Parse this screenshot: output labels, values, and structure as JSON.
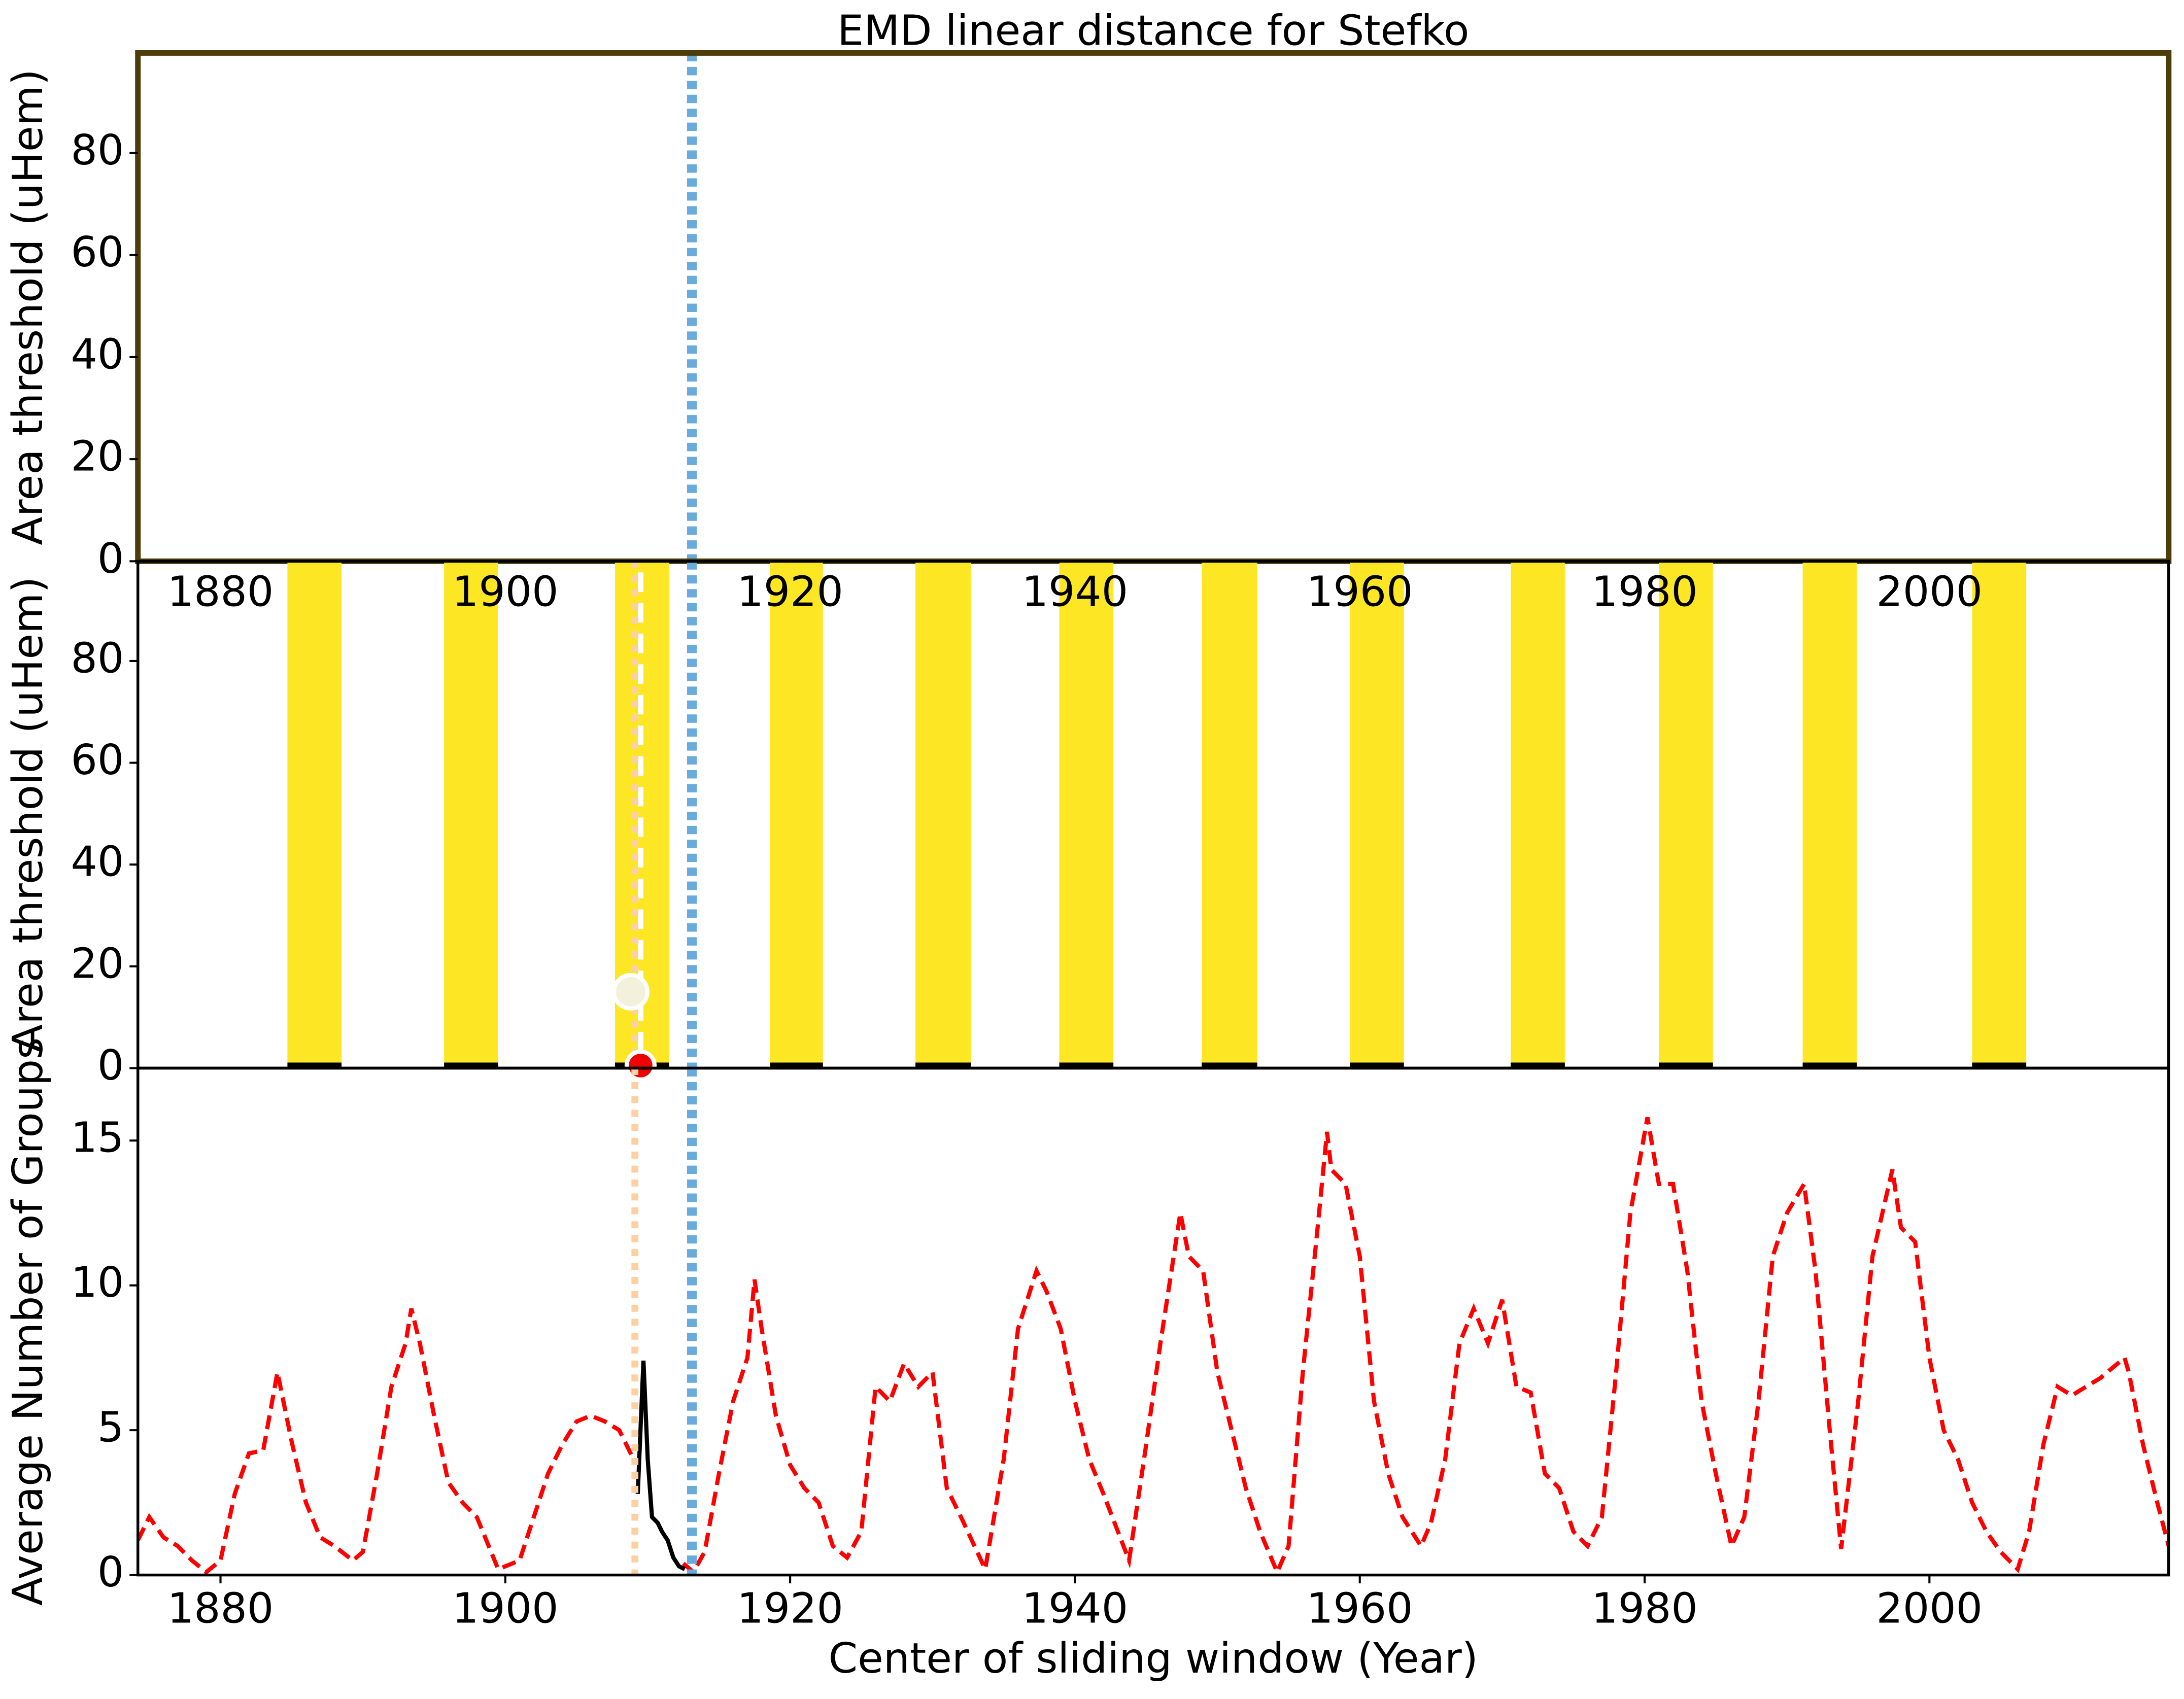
{
  "chart_data": [
    {
      "type": "empty",
      "title": "EMD linear distance for Stefko",
      "ylabel": "Area threshold (uHem)",
      "xlim": [
        1874.2,
        2016.8
      ],
      "ylim": [
        0,
        99.6
      ],
      "yticks": [
        0,
        20,
        40,
        60,
        80
      ],
      "frame_color": "#4d3d0a",
      "vlines": [
        {
          "x": 1913.1,
          "color": "#6aabde"
        }
      ]
    },
    {
      "type": "bands",
      "ylabel": "Area threshold (uHem)",
      "xlim": [
        1874.2,
        2016.8
      ],
      "ylim": [
        0,
        99.6
      ],
      "yticks": [
        0,
        20,
        40,
        60,
        80
      ],
      "xticks": [
        1880,
        1900,
        1920,
        1940,
        1960,
        1980,
        2000
      ],
      "band_color": "#fde725",
      "bands": [
        {
          "start": 1884.7,
          "end": 1888.5
        },
        {
          "start": 1895.7,
          "end": 1899.5
        },
        {
          "start": 1907.7,
          "end": 1911.5
        },
        {
          "start": 1918.6,
          "end": 1922.3
        },
        {
          "start": 1928.8,
          "end": 1932.7
        },
        {
          "start": 1938.9,
          "end": 1942.7
        },
        {
          "start": 1948.9,
          "end": 1952.8
        },
        {
          "start": 1959.3,
          "end": 1963.1
        },
        {
          "start": 1970.6,
          "end": 1974.4
        },
        {
          "start": 1981.0,
          "end": 1984.8
        },
        {
          "start": 1991.1,
          "end": 1994.9
        },
        {
          "start": 2003.0,
          "end": 2006.8
        }
      ],
      "points": [
        {
          "x": 1908.8,
          "y": 15,
          "color": "#f3f0dc"
        },
        {
          "x": 1909.5,
          "y": 0.5,
          "color": "#ee0000"
        }
      ],
      "vlines": [
        {
          "x": 1909.5,
          "color": "#ffffff"
        },
        {
          "x": 1909.1,
          "color": "#fdd0a2"
        },
        {
          "x": 1913.1,
          "color": "#6aabde"
        }
      ]
    },
    {
      "type": "line",
      "ylabel": "Average Number of Groups",
      "xlabel": "Center of sliding window (Year)",
      "xlim": [
        1874.2,
        2016.8
      ],
      "ylim": [
        0,
        17.5
      ],
      "yticks": [
        0,
        5,
        10,
        15
      ],
      "xticks": [
        1880,
        1900,
        1920,
        1940,
        1960,
        1980,
        2000
      ],
      "series": [
        {
          "color": "#ff0000",
          "x": [
            1874.2,
            1875,
            1876,
            1877,
            1878,
            1879,
            1880,
            1881,
            1882,
            1883,
            1884,
            1885,
            1886,
            1887,
            1888,
            1889.3,
            1890,
            1891,
            1892,
            1893,
            1893.4,
            1894,
            1895,
            1896,
            1897,
            1898,
            1899.5,
            1901,
            1902,
            1903,
            1904,
            1905,
            1906,
            1907,
            1908,
            1909,
            1910,
            1912.5,
            1913.2,
            1914,
            1915,
            1916,
            1917,
            1917.5,
            1918,
            1919,
            1920,
            1921,
            1922,
            1923,
            1924,
            1925,
            1926,
            1927,
            1928,
            1929,
            1930,
            1931,
            1932,
            1933.7,
            1935,
            1936,
            1937.3,
            1938,
            1939,
            1940,
            1941,
            1942,
            1943.8,
            1945,
            1946,
            1947.4,
            1948,
            1949,
            1950,
            1951,
            1952,
            1953,
            1954.2,
            1955,
            1956,
            1957,
            1957.7,
            1958,
            1959,
            1960,
            1961,
            1962,
            1963,
            1964.3,
            1965,
            1966,
            1967,
            1968,
            1969,
            1970,
            1971,
            1972,
            1973,
            1974,
            1975,
            1976,
            1977,
            1978,
            1979,
            1980.2,
            1981,
            1982,
            1983,
            1984,
            1985,
            1986.1,
            1987,
            1988,
            1989,
            1990,
            1991.2,
            1992,
            1993,
            1993.8,
            1995,
            1996,
            1997.4,
            1998,
            1999,
            2000,
            2001,
            2002,
            2003,
            2004,
            2005,
            2006.2,
            2007,
            2008,
            2009,
            2010,
            2011,
            2012,
            2013.7,
            2014,
            2015,
            2016,
            2016.8
          ],
          "values": [
            1.2,
            2.0,
            1.3,
            1.0,
            0.5,
            0.1,
            0.5,
            2.8,
            4.2,
            4.3,
            7.0,
            4.6,
            2.5,
            1.3,
            1.0,
            0.5,
            0.8,
            3.5,
            6.5,
            8.0,
            9.2,
            8.0,
            5.5,
            3.2,
            2.5,
            2.0,
            0.2,
            0.5,
            2.0,
            3.5,
            4.5,
            5.3,
            5.5,
            5.3,
            5.0,
            4.0,
            null,
            0.4,
            0.1,
            0.8,
            3.5,
            6.0,
            7.5,
            10.2,
            8.5,
            5.5,
            3.8,
            3.0,
            2.5,
            1.0,
            0.6,
            1.5,
            6.5,
            6.0,
            7.3,
            6.5,
            7.0,
            3.0,
            2.0,
            0.2,
            4.0,
            8.5,
            10.5,
            9.8,
            8.5,
            6.0,
            4.0,
            2.8,
            0.5,
            4.5,
            8.0,
            12.5,
            11.0,
            10.5,
            7.0,
            5.0,
            3.0,
            1.5,
            0.1,
            1.0,
            7.0,
            11.8,
            15.3,
            14.0,
            13.5,
            11.0,
            6.0,
            3.5,
            2.0,
            1.0,
            1.8,
            4.0,
            8.0,
            9.2,
            8.0,
            9.5,
            6.5,
            6.3,
            3.5,
            3.0,
            1.5,
            1.0,
            2.0,
            7.0,
            12.5,
            15.8,
            13.5,
            13.5,
            10.5,
            6.0,
            3.5,
            1.0,
            2.0,
            6.0,
            11.0,
            12.5,
            13.5,
            10.5,
            5.0,
            0.9,
            6.0,
            11.0,
            14.0,
            12.0,
            11.5,
            7.5,
            5.0,
            4.0,
            2.5,
            1.5,
            0.8,
            0.2,
            1.5,
            4.5,
            6.5,
            6.2,
            6.5,
            6.8,
            7.5,
            7.0,
            4.5,
            2.5,
            1.0
          ]
        },
        {
          "color": "#000000",
          "x": [
            1909.3,
            1909.7,
            1910,
            1910.3,
            1910.7,
            1911,
            1911.4,
            1911.8,
            1912.2,
            1912.6
          ],
          "values": [
            2.8,
            7.4,
            4.0,
            2.0,
            1.8,
            1.5,
            1.2,
            0.6,
            0.3,
            0.2
          ]
        }
      ],
      "vlines": [
        {
          "x": 1909.1,
          "color": "#fdd0a2"
        },
        {
          "x": 1913.1,
          "color": "#6aabde"
        }
      ]
    }
  ]
}
